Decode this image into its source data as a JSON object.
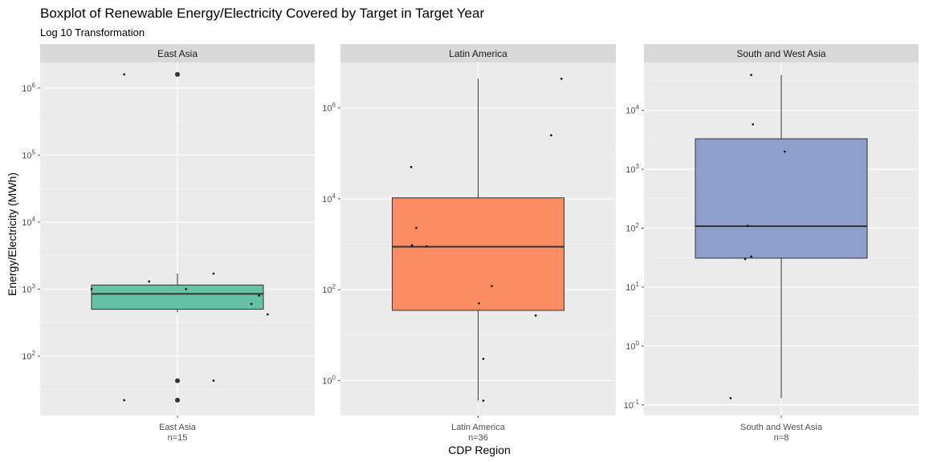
{
  "chart_data": {
    "type": "boxplot",
    "title": "Boxplot of Renewable Energy/Electricity Covered by Target in Target Year",
    "subtitle": "Log 10 Transformation",
    "xlabel": "CDP Region",
    "ylabel": "Energy/Electricity (MWh)",
    "y_scale": "log10",
    "grid": true,
    "facet_scales": "free_y",
    "colors": {
      "East Asia": "#66c2a5",
      "Latin America": "#fc8d62",
      "South and West Asia": "#8da0cb",
      "panel_background": "#ebebeb",
      "strip_background": "#d9d9d9"
    },
    "panels": [
      {
        "strip": "East Asia",
        "category": "East Asia",
        "count_label": "n=15",
        "ylim": [
          13,
          2400000
        ],
        "y_ticks": [
          {
            "value": 100,
            "label": "10",
            "exp": "2"
          },
          {
            "value": 1000,
            "label": "10",
            "exp": "3"
          },
          {
            "value": 10000,
            "label": "10",
            "exp": "4"
          },
          {
            "value": 100000,
            "label": "10",
            "exp": "5"
          },
          {
            "value": 1000000,
            "label": "10",
            "exp": "6"
          }
        ],
        "box": {
          "q1": 500,
          "median": 850,
          "q3": 1150,
          "whisker_low": 450,
          "whisker_high": 1700
        },
        "outliers": [
          22,
          43,
          1600000
        ],
        "jitter_points": [
          {
            "x": -0.62,
            "y": 1600000
          },
          {
            "x": -0.62,
            "y": 22
          },
          {
            "x": 0.42,
            "y": 43
          },
          {
            "x": -0.33,
            "y": 1300
          },
          {
            "x": 0.42,
            "y": 1700
          },
          {
            "x": 0.1,
            "y": 1000
          },
          {
            "x": 0.95,
            "y": 800
          },
          {
            "x": 0.86,
            "y": 600
          },
          {
            "x": 1.05,
            "y": 420
          },
          {
            "x": -1.0,
            "y": 1000
          }
        ]
      },
      {
        "strip": "Latin America",
        "category": "Latin America",
        "count_label": "n=36",
        "ylim": [
          0.17,
          10000000
        ],
        "y_ticks": [
          {
            "value": 1,
            "label": "10",
            "exp": "0"
          },
          {
            "value": 100,
            "label": "10",
            "exp": "2"
          },
          {
            "value": 10000,
            "label": "10",
            "exp": "4"
          },
          {
            "value": 1000000,
            "label": "10",
            "exp": "6"
          }
        ],
        "box": {
          "q1": 35,
          "median": 880,
          "q3": 10500,
          "whisker_low": 0.36,
          "whisker_high": 4400000
        },
        "outliers": [],
        "jitter_points": [
          {
            "x": 0.97,
            "y": 4400000
          },
          {
            "x": -0.78,
            "y": 50000
          },
          {
            "x": 0.85,
            "y": 250000
          },
          {
            "x": -0.72,
            "y": 2300
          },
          {
            "x": -0.77,
            "y": 950
          },
          {
            "x": -0.6,
            "y": 900
          },
          {
            "x": 0.16,
            "y": 120
          },
          {
            "x": 0.01,
            "y": 50
          },
          {
            "x": 0.67,
            "y": 27
          },
          {
            "x": 0.06,
            "y": 3
          },
          {
            "x": 0.06,
            "y": 0.36
          }
        ]
      },
      {
        "strip": "South and West Asia",
        "category": "South and West Asia",
        "count_label": "n=8",
        "ylim": [
          0.066,
          65000
        ],
        "y_ticks": [
          {
            "value": 0.1,
            "label": "10",
            "exp": "-1"
          },
          {
            "value": 1,
            "label": "10",
            "exp": "0"
          },
          {
            "value": 10,
            "label": "10",
            "exp": "1"
          },
          {
            "value": 100,
            "label": "10",
            "exp": "2"
          },
          {
            "value": 1000,
            "label": "10",
            "exp": "3"
          },
          {
            "value": 10000,
            "label": "10",
            "exp": "4"
          }
        ],
        "box": {
          "q1": 31,
          "median": 108,
          "q3": 3300,
          "whisker_low": 0.13,
          "whisker_high": 40000
        },
        "outliers": [],
        "jitter_points": [
          {
            "x": -0.35,
            "y": 40000
          },
          {
            "x": -0.33,
            "y": 5800
          },
          {
            "x": 0.04,
            "y": 2000
          },
          {
            "x": -0.39,
            "y": 110
          },
          {
            "x": -0.42,
            "y": 30
          },
          {
            "x": -0.35,
            "y": 33
          },
          {
            "x": -0.59,
            "y": 0.13
          }
        ]
      }
    ]
  }
}
